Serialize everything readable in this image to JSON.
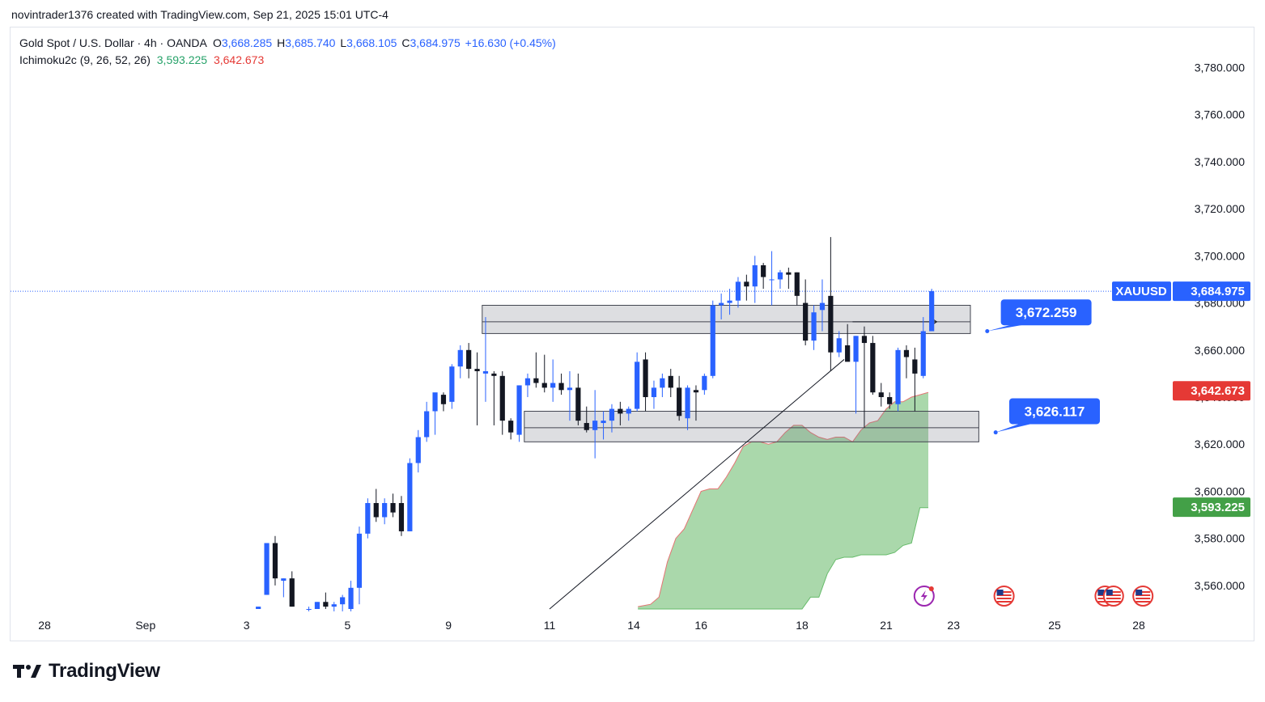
{
  "header": {
    "attribution": "novintrader1376 created with TradingView.com, Sep 21, 2025 15:01 UTC-4"
  },
  "legend": {
    "symbol_line": "Gold Spot / U.S. Dollar · 4h · OANDA",
    "o_label": "O",
    "o_value": "3,668.285",
    "h_label": "H",
    "h_value": "3,685.740",
    "l_label": "L",
    "l_value": "3,668.105",
    "c_label": "C",
    "c_value": "3,684.975",
    "change": "+16.630 (+0.45%)",
    "indicator": "Ichimoku2c (9, 26, 52, 26)",
    "ind_value_1": "3,593.225",
    "ind_value_2": "3,642.673"
  },
  "brand": {
    "name": "TradingView"
  },
  "colors": {
    "up": "#2962ff",
    "down": "#131722",
    "cloud": "#a5d6a7",
    "cloud_edge": "#e57373",
    "accent": "#2962ff",
    "red": "#e53935",
    "green": "#43a047"
  },
  "chart_data": {
    "type": "candlestick",
    "symbol": "XAUUSD",
    "ylim": [
      3550,
      3797
    ],
    "y_ticks": [
      3560,
      3580,
      3600,
      3620,
      3640,
      3660,
      3680,
      3700,
      3720,
      3740,
      3760,
      3780
    ],
    "y_tick_labels": [
      "3,560.000",
      "3,580.000",
      "3,600.000",
      "3,620.000",
      "3,640.000",
      "3,660.000",
      "3,680.000",
      "3,700.000",
      "3,720.000",
      "3,740.000",
      "3,760.000",
      "3,780.000"
    ],
    "x_tick_labels": [
      {
        "label": "28",
        "x": 0
      },
      {
        "label": "Sep",
        "x": 12
      },
      {
        "label": "3",
        "x": 24
      },
      {
        "label": "5",
        "x": 36
      },
      {
        "label": "9",
        "x": 48
      },
      {
        "label": "11",
        "x": 60
      },
      {
        "label": "14",
        "x": 70
      },
      {
        "label": "16",
        "x": 78
      },
      {
        "label": "18",
        "x": 90
      },
      {
        "label": "21",
        "x": 100
      },
      {
        "label": "23",
        "x": 108
      },
      {
        "label": "25",
        "x": 120
      },
      {
        "label": "28",
        "x": 130
      }
    ],
    "candles": [
      {
        "x": 25.4,
        "o": 3550,
        "h": 3551,
        "l": 3550,
        "c": 3551
      },
      {
        "x": 26.4,
        "o": 3556,
        "h": 3578,
        "l": 3556,
        "c": 3578
      },
      {
        "x": 27.4,
        "o": 3578,
        "h": 3581,
        "l": 3560,
        "c": 3563
      },
      {
        "x": 28.4,
        "o": 3562,
        "h": 3563,
        "l": 3555,
        "c": 3563
      },
      {
        "x": 29.4,
        "o": 3563,
        "h": 3566,
        "l": 3551,
        "c": 3551
      },
      {
        "x": 31.4,
        "o": 3550,
        "h": 3551,
        "l": 3549,
        "c": 3550
      },
      {
        "x": 32.4,
        "o": 3550,
        "h": 3553,
        "l": 3550,
        "c": 3553
      },
      {
        "x": 33.4,
        "o": 3553,
        "h": 3557,
        "l": 3550,
        "c": 3551
      },
      {
        "x": 34.4,
        "o": 3551,
        "h": 3553,
        "l": 3549,
        "c": 3552
      },
      {
        "x": 35.4,
        "o": 3552,
        "h": 3556,
        "l": 3549,
        "c": 3555
      },
      {
        "x": 36.4,
        "o": 3550,
        "h": 3562,
        "l": 3549,
        "c": 3559
      },
      {
        "x": 37.4,
        "o": 3559,
        "h": 3585,
        "l": 3552,
        "c": 3582
      },
      {
        "x": 38.4,
        "o": 3582,
        "h": 3597,
        "l": 3580,
        "c": 3595
      },
      {
        "x": 39.4,
        "o": 3595,
        "h": 3601,
        "l": 3587,
        "c": 3589
      },
      {
        "x": 40.4,
        "o": 3589,
        "h": 3597,
        "l": 3586,
        "c": 3595
      },
      {
        "x": 41.4,
        "o": 3595,
        "h": 3599,
        "l": 3589,
        "c": 3591
      },
      {
        "x": 42.4,
        "o": 3595,
        "h": 3598,
        "l": 3581,
        "c": 3583
      },
      {
        "x": 43.4,
        "o": 3583,
        "h": 3614,
        "l": 3583,
        "c": 3612
      },
      {
        "x": 44.4,
        "o": 3612,
        "h": 3626,
        "l": 3608,
        "c": 3623
      },
      {
        "x": 45.4,
        "o": 3623,
        "h": 3638,
        "l": 3621,
        "c": 3634
      },
      {
        "x": 46.4,
        "o": 3634,
        "h": 3641,
        "l": 3624,
        "c": 3642
      },
      {
        "x": 47.4,
        "o": 3641,
        "h": 3642,
        "l": 3634,
        "c": 3637
      },
      {
        "x": 48.4,
        "o": 3638,
        "h": 3654,
        "l": 3635,
        "c": 3653
      },
      {
        "x": 49.4,
        "o": 3653,
        "h": 3662,
        "l": 3648,
        "c": 3660
      },
      {
        "x": 50.4,
        "o": 3660,
        "h": 3663,
        "l": 3648,
        "c": 3652
      },
      {
        "x": 51.4,
        "o": 3652,
        "h": 3659,
        "l": 3628,
        "c": 3651
      },
      {
        "x": 52.4,
        "o": 3650,
        "h": 3674,
        "l": 3638,
        "c": 3651
      },
      {
        "x": 53.4,
        "o": 3650,
        "h": 3651,
        "l": 3628,
        "c": 3649
      },
      {
        "x": 54.4,
        "o": 3649,
        "h": 3651,
        "l": 3624,
        "c": 3630
      },
      {
        "x": 55.4,
        "o": 3630,
        "h": 3631,
        "l": 3622,
        "c": 3625
      },
      {
        "x": 56.4,
        "o": 3624,
        "h": 3645,
        "l": 3621,
        "c": 3645
      },
      {
        "x": 57.4,
        "o": 3645,
        "h": 3650,
        "l": 3640,
        "c": 3648
      },
      {
        "x": 58.4,
        "o": 3648,
        "h": 3659,
        "l": 3644,
        "c": 3646
      },
      {
        "x": 59.4,
        "o": 3646,
        "h": 3658,
        "l": 3642,
        "c": 3644
      },
      {
        "x": 60.4,
        "o": 3644,
        "h": 3656,
        "l": 3638,
        "c": 3646
      },
      {
        "x": 61.4,
        "o": 3646,
        "h": 3650,
        "l": 3641,
        "c": 3643
      },
      {
        "x": 62.4,
        "o": 3643,
        "h": 3651,
        "l": 3630,
        "c": 3644
      },
      {
        "x": 63.4,
        "o": 3644,
        "h": 3650,
        "l": 3628,
        "c": 3630
      },
      {
        "x": 64.4,
        "o": 3629,
        "h": 3636,
        "l": 3625,
        "c": 3626
      },
      {
        "x": 65.4,
        "o": 3626,
        "h": 3643,
        "l": 3614,
        "c": 3630
      },
      {
        "x": 66.4,
        "o": 3629,
        "h": 3634,
        "l": 3622,
        "c": 3630
      },
      {
        "x": 67.4,
        "o": 3630,
        "h": 3637,
        "l": 3625,
        "c": 3635
      },
      {
        "x": 68.4,
        "o": 3635,
        "h": 3638,
        "l": 3628,
        "c": 3633
      },
      {
        "x": 69.4,
        "o": 3633,
        "h": 3636,
        "l": 3630,
        "c": 3635
      },
      {
        "x": 70.4,
        "o": 3635,
        "h": 3659,
        "l": 3634,
        "c": 3655
      },
      {
        "x": 71.4,
        "o": 3656,
        "h": 3659,
        "l": 3634,
        "c": 3640
      },
      {
        "x": 72.4,
        "o": 3640,
        "h": 3647,
        "l": 3635,
        "c": 3644
      },
      {
        "x": 73.4,
        "o": 3644,
        "h": 3650,
        "l": 3640,
        "c": 3648
      },
      {
        "x": 74.4,
        "o": 3649,
        "h": 3652,
        "l": 3640,
        "c": 3644
      },
      {
        "x": 75.4,
        "o": 3644,
        "h": 3649,
        "l": 3630,
        "c": 3632
      },
      {
        "x": 76.4,
        "o": 3631,
        "h": 3645,
        "l": 3626,
        "c": 3644
      },
      {
        "x": 77.4,
        "o": 3643,
        "h": 3645,
        "l": 3630,
        "c": 3642
      },
      {
        "x": 78.4,
        "o": 3643,
        "h": 3650,
        "l": 3641,
        "c": 3649
      },
      {
        "x": 79.4,
        "o": 3649,
        "h": 3681,
        "l": 3648,
        "c": 3679
      },
      {
        "x": 80.4,
        "o": 3679,
        "h": 3684,
        "l": 3673,
        "c": 3680
      },
      {
        "x": 81.4,
        "o": 3680,
        "h": 3686,
        "l": 3675,
        "c": 3681
      },
      {
        "x": 82.4,
        "o": 3681,
        "h": 3691,
        "l": 3678,
        "c": 3689
      },
      {
        "x": 83.4,
        "o": 3689,
        "h": 3692,
        "l": 3681,
        "c": 3687
      },
      {
        "x": 84.4,
        "o": 3687,
        "h": 3700,
        "l": 3680,
        "c": 3696
      },
      {
        "x": 85.4,
        "o": 3696,
        "h": 3697,
        "l": 3686,
        "c": 3691
      },
      {
        "x": 86.4,
        "o": 3690,
        "h": 3702,
        "l": 3679,
        "c": 3690
      },
      {
        "x": 87.4,
        "o": 3690,
        "h": 3694,
        "l": 3686,
        "c": 3693
      },
      {
        "x": 88.4,
        "o": 3693,
        "h": 3695,
        "l": 3686,
        "c": 3692
      },
      {
        "x": 89.4,
        "o": 3693,
        "h": 3693,
        "l": 3679,
        "c": 3683
      },
      {
        "x": 90.4,
        "o": 3680,
        "h": 3690,
        "l": 3662,
        "c": 3664
      },
      {
        "x": 91.4,
        "o": 3664,
        "h": 3679,
        "l": 3660,
        "c": 3676
      },
      {
        "x": 92.4,
        "o": 3677,
        "h": 3690,
        "l": 3668,
        "c": 3680
      },
      {
        "x": 93.4,
        "o": 3683,
        "h": 3708,
        "l": 3651,
        "c": 3659
      },
      {
        "x": 94.4,
        "o": 3659,
        "h": 3668,
        "l": 3657,
        "c": 3665
      },
      {
        "x": 95.4,
        "o": 3662,
        "h": 3671,
        "l": 3656,
        "c": 3655
      },
      {
        "x": 96.4,
        "o": 3655,
        "h": 3666,
        "l": 3633,
        "c": 3666
      },
      {
        "x": 97.4,
        "o": 3666,
        "h": 3670,
        "l": 3627,
        "c": 3663
      },
      {
        "x": 98.4,
        "o": 3663,
        "h": 3666,
        "l": 3641,
        "c": 3642
      },
      {
        "x": 99.4,
        "o": 3642,
        "h": 3646,
        "l": 3636,
        "c": 3640
      },
      {
        "x": 100.4,
        "o": 3640,
        "h": 3642,
        "l": 3635,
        "c": 3637
      },
      {
        "x": 101.4,
        "o": 3637,
        "h": 3661,
        "l": 3634,
        "c": 3660
      },
      {
        "x": 102.4,
        "o": 3660,
        "h": 3662,
        "l": 3648,
        "c": 3657
      },
      {
        "x": 103.4,
        "o": 3656,
        "h": 3661,
        "l": 3634,
        "c": 3650
      },
      {
        "x": 104.4,
        "o": 3649,
        "h": 3674,
        "l": 3648,
        "c": 3668
      },
      {
        "x": 105.4,
        "o": 3668,
        "h": 3686,
        "l": 3668,
        "c": 3685
      }
    ],
    "cloud": {
      "upper_points": [
        [
          70.5,
          3551
        ],
        [
          72,
          3552
        ],
        [
          73,
          3555
        ],
        [
          74,
          3570
        ],
        [
          75,
          3580
        ],
        [
          76,
          3584
        ],
        [
          77,
          3592
        ],
        [
          78,
          3600
        ],
        [
          79,
          3601
        ],
        [
          80,
          3601
        ],
        [
          81,
          3606
        ],
        [
          82,
          3612
        ],
        [
          83,
          3619
        ],
        [
          84,
          3621
        ],
        [
          85,
          3621
        ],
        [
          86,
          3620
        ],
        [
          87,
          3621
        ],
        [
          88,
          3625
        ],
        [
          89,
          3628
        ],
        [
          90,
          3628
        ],
        [
          91,
          3625
        ],
        [
          92,
          3623
        ],
        [
          93,
          3622
        ],
        [
          94,
          3623
        ],
        [
          95,
          3623
        ],
        [
          96,
          3621
        ],
        [
          97,
          3626
        ],
        [
          98,
          3629
        ],
        [
          99,
          3630
        ],
        [
          100,
          3635
        ],
        [
          101,
          3638
        ],
        [
          102,
          3638
        ],
        [
          103,
          3640
        ],
        [
          104,
          3641
        ],
        [
          105,
          3642
        ]
      ],
      "lower_points": [
        [
          70.5,
          3550
        ],
        [
          72,
          3550
        ],
        [
          73,
          3550
        ],
        [
          74,
          3550
        ],
        [
          75,
          3550
        ],
        [
          76,
          3550
        ],
        [
          77,
          3550
        ],
        [
          78,
          3550
        ],
        [
          79,
          3550
        ],
        [
          80,
          3550
        ],
        [
          81,
          3550
        ],
        [
          82,
          3550
        ],
        [
          83,
          3550
        ],
        [
          84,
          3550
        ],
        [
          85,
          3550
        ],
        [
          86,
          3550
        ],
        [
          87,
          3550
        ],
        [
          88,
          3550
        ],
        [
          89,
          3550
        ],
        [
          90,
          3550
        ],
        [
          91,
          3555
        ],
        [
          92,
          3555
        ],
        [
          93,
          3565
        ],
        [
          94,
          3571
        ],
        [
          95,
          3572
        ],
        [
          96,
          3572
        ],
        [
          97,
          3573
        ],
        [
          98,
          3573
        ],
        [
          99,
          3573
        ],
        [
          100,
          3573
        ],
        [
          101,
          3574
        ],
        [
          102,
          3577
        ],
        [
          103,
          3578
        ],
        [
          104,
          3593
        ],
        [
          105,
          3593
        ]
      ]
    },
    "zones": [
      {
        "x1": 52,
        "x2": 110,
        "top": 3679,
        "bottom": 3667,
        "mid": 3672
      },
      {
        "x1": 57,
        "x2": 111,
        "top": 3634,
        "bottom": 3621,
        "mid": 3627
      }
    ],
    "trend_line": {
      "x1": 60,
      "y1": 3550,
      "x2": 95,
      "y2": 3656
    },
    "arrow": {
      "x1": 96,
      "x2": 106,
      "y": 3672
    },
    "callouts": [
      {
        "label": "3,672.259",
        "x": 119,
        "y": 3676,
        "tip_x": 112,
        "tip_y": 3668
      },
      {
        "label": "3,626.117",
        "x": 120,
        "y": 3634,
        "tip_x": 113,
        "tip_y": 3625
      }
    ],
    "current_price": {
      "value": 3684.975,
      "label": "3,684.975",
      "symbol": "XAUUSD"
    },
    "price_tags": [
      {
        "label": "3,642.673",
        "value": 3642.673,
        "color": "#e53935"
      },
      {
        "label": "3,593.225",
        "value": 3593.225,
        "color": "#43a047"
      }
    ],
    "event_icons": [
      {
        "type": "lightning-icon",
        "x": 104.5
      },
      {
        "type": "us-flag-icon",
        "x": 114
      },
      {
        "type": "us-flag-icon",
        "x": 126
      },
      {
        "type": "us-flag-icon",
        "x": 127
      },
      {
        "type": "us-flag-icon",
        "x": 130.5
      }
    ]
  }
}
